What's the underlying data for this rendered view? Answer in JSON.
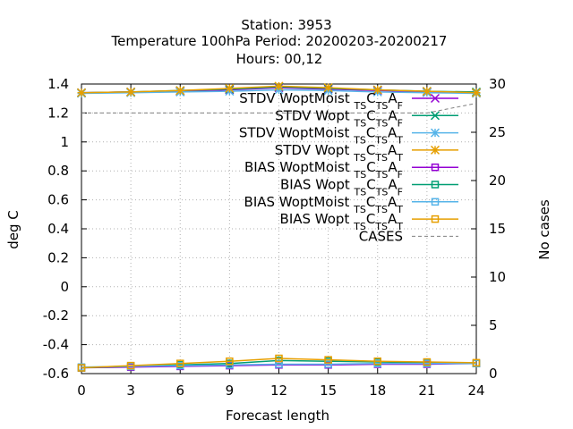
{
  "title_lines": [
    "Station:      3953",
    "Temperature 100hPa   Period: 20200203-20200217",
    "Hours:  00,12"
  ],
  "chart_data": {
    "type": "line",
    "xlabel": "Forecast length",
    "ylabel": "deg C",
    "y2label": "No cases",
    "xlim": [
      0,
      24
    ],
    "ylim": [
      -0.6,
      1.4
    ],
    "y2lim": [
      0,
      30
    ],
    "xticks": [
      "0",
      "3",
      "6",
      "9",
      "12",
      "15",
      "18",
      "21",
      "24"
    ],
    "yticks": [
      "-0.6",
      "-0.4",
      "-0.2",
      "0",
      "0.2",
      "0.4",
      "0.6",
      "0.8",
      "1",
      "1.2",
      "1.4"
    ],
    "y2ticks": [
      "0",
      "5",
      "10",
      "15",
      "20",
      "25",
      "30"
    ],
    "grid": true,
    "legend_position": "top-right",
    "x": [
      0,
      3,
      6,
      9,
      12,
      15,
      18,
      21,
      24
    ],
    "series": [
      {
        "name_main": "STDV WoptMoist",
        "name_sub1": "TS",
        "name_mid": "C",
        "name_sub2": "TS",
        "name_end": "A",
        "name_sub3": "F",
        "color": "#9400d3",
        "marker": "x",
        "axis": "y",
        "values": [
          1.34,
          1.345,
          1.35,
          1.36,
          1.375,
          1.365,
          1.355,
          1.345,
          1.34
        ]
      },
      {
        "name_main": "STDV Wopt",
        "name_sub1": "TS",
        "name_mid": "C",
        "name_sub2": "TS",
        "name_end": "A",
        "name_sub3": "F",
        "color": "#009e73",
        "marker": "x",
        "axis": "y",
        "values": [
          1.34,
          1.345,
          1.355,
          1.365,
          1.38,
          1.37,
          1.36,
          1.35,
          1.345
        ]
      },
      {
        "name_main": "STDV WoptMoist",
        "name_sub1": "TS",
        "name_mid": "C",
        "name_sub2": "TS",
        "name_end": "A",
        "name_sub3": "T",
        "color": "#56b4e9",
        "marker": "star",
        "axis": "y",
        "values": [
          1.335,
          1.34,
          1.345,
          1.35,
          1.36,
          1.355,
          1.345,
          1.34,
          1.335
        ]
      },
      {
        "name_main": "STDV Wopt",
        "name_sub1": "TS",
        "name_mid": "C",
        "name_sub2": "TS",
        "name_end": "A",
        "name_sub3": "T",
        "color": "#e69f00",
        "marker": "star",
        "axis": "y",
        "values": [
          1.34,
          1.345,
          1.355,
          1.37,
          1.385,
          1.375,
          1.36,
          1.35,
          1.34
        ]
      },
      {
        "name_main": "BIAS WoptMoist",
        "name_sub1": "TS",
        "name_mid": "C",
        "name_sub2": "TS",
        "name_end": "A",
        "name_sub3": "F",
        "color": "#9400d3",
        "marker": "square",
        "axis": "y",
        "values": [
          -0.56,
          -0.555,
          -0.55,
          -0.545,
          -0.54,
          -0.54,
          -0.535,
          -0.535,
          -0.53
        ]
      },
      {
        "name_main": "BIAS Wopt",
        "name_sub1": "TS",
        "name_mid": "C",
        "name_sub2": "TS",
        "name_end": "A",
        "name_sub3": "F",
        "color": "#009e73",
        "marker": "square",
        "axis": "y",
        "values": [
          -0.56,
          -0.55,
          -0.54,
          -0.53,
          -0.51,
          -0.515,
          -0.52,
          -0.525,
          -0.53
        ]
      },
      {
        "name_main": "BIAS WoptMoist",
        "name_sub1": "TS",
        "name_mid": "C",
        "name_sub2": "TS",
        "name_end": "A",
        "name_sub3": "T",
        "color": "#56b4e9",
        "marker": "square",
        "axis": "y",
        "values": [
          -0.555,
          -0.55,
          -0.545,
          -0.54,
          -0.535,
          -0.535,
          -0.53,
          -0.53,
          -0.53
        ]
      },
      {
        "name_main": "BIAS Wopt",
        "name_sub1": "TS",
        "name_mid": "C",
        "name_sub2": "TS",
        "name_end": "A",
        "name_sub3": "T",
        "color": "#e69f00",
        "marker": "square",
        "axis": "y",
        "values": [
          -0.56,
          -0.545,
          -0.53,
          -0.515,
          -0.495,
          -0.505,
          -0.515,
          -0.52,
          -0.525
        ]
      },
      {
        "name_main": "CASES",
        "name_sub1": "",
        "name_mid": "",
        "name_sub2": "",
        "name_end": "",
        "name_sub3": "",
        "color": "#808080",
        "marker": "none",
        "dashed": true,
        "axis": "y2",
        "values": [
          27,
          27,
          27,
          27,
          27,
          27,
          27,
          27,
          28
        ]
      }
    ]
  }
}
